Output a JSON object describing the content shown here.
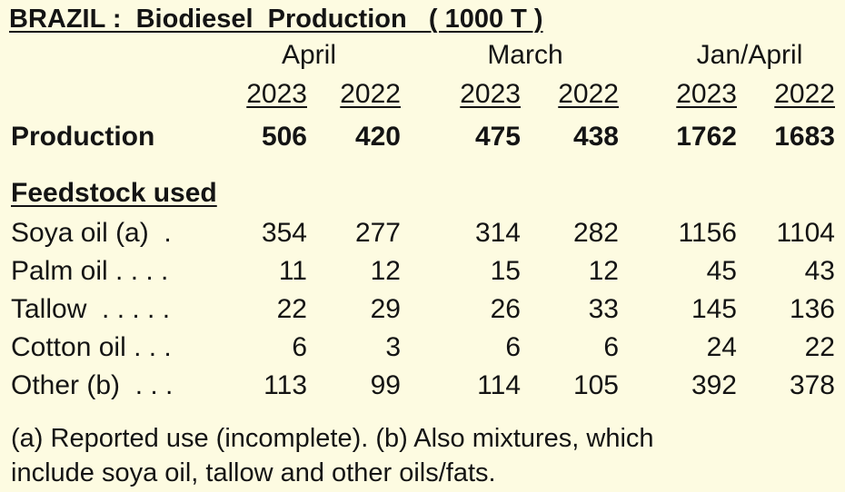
{
  "title": "BRAZIL :  Biodiesel  Production   ( 1000 T )",
  "periods": [
    {
      "label": "April",
      "years": [
        "2023",
        "2022"
      ]
    },
    {
      "label": "March",
      "years": [
        "2023",
        "2022"
      ]
    },
    {
      "label": "Jan/April",
      "years": [
        "2023",
        "2022"
      ]
    }
  ],
  "production": {
    "label": "Production",
    "values": [
      "506",
      "420",
      "475",
      "438",
      "1762",
      "1683"
    ]
  },
  "feedstock_heading": "Feedstock used",
  "feedstock": [
    {
      "label": "Soya oil (a)  .",
      "values": [
        "354",
        "277",
        "314",
        "282",
        "1156",
        "1104"
      ]
    },
    {
      "label": "Palm oil . . . .",
      "values": [
        "11",
        "12",
        "15",
        "12",
        "45",
        "43"
      ]
    },
    {
      "label": "Tallow  . . . . .",
      "values": [
        "22",
        "29",
        "26",
        "33",
        "145",
        "136"
      ]
    },
    {
      "label": "Cotton oil . . .",
      "values": [
        "6",
        "3",
        "6",
        "6",
        "24",
        "22"
      ]
    },
    {
      "label": "Other (b)  . . .",
      "values": [
        "113",
        "99",
        "114",
        "105",
        "392",
        "378"
      ]
    }
  ],
  "footnotes": [
    "(a) Reported use (incomplete). (b) Also mixtures, which",
    "include soya oil, tallow and other oils/fats."
  ],
  "colors": {
    "background": "#fdfbe1",
    "text": "#141414"
  }
}
